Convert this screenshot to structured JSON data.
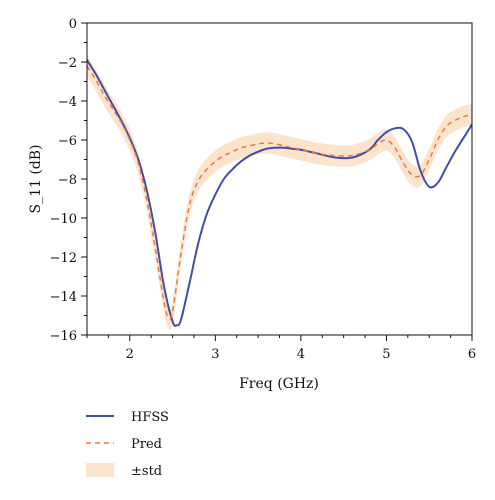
{
  "chart_data": {
    "type": "line",
    "title": "",
    "xlabel": "Freq (GHz)",
    "ylabel": "S_11 (dB)",
    "xlim": [
      1.5,
      6
    ],
    "ylim": [
      -16,
      0
    ],
    "xticks": [
      2,
      3,
      4,
      5,
      6
    ],
    "yticks": [
      0,
      -2,
      -4,
      -6,
      -8,
      -10,
      -12,
      -14,
      -16
    ],
    "xtick_labels": [
      "2",
      "3",
      "4",
      "5",
      "6"
    ],
    "ytick_labels": [
      "0",
      "−2",
      "−4",
      "−6",
      "−8",
      "−10",
      "−12",
      "−14",
      "−16"
    ],
    "grid": false,
    "legend_position": "bottom-left, below plot",
    "legend": [
      "HFSS",
      "Pred",
      "±std"
    ],
    "series": [
      {
        "name": "HFSS",
        "style": "solid",
        "color": "#3f4fa8",
        "x": [
          1.5,
          1.6,
          1.7,
          1.8,
          1.9,
          2.0,
          2.1,
          2.2,
          2.3,
          2.4,
          2.5,
          2.55,
          2.6,
          2.7,
          2.8,
          2.9,
          3.0,
          3.1,
          3.2,
          3.3,
          3.4,
          3.5,
          3.6,
          3.7,
          3.8,
          3.9,
          4.0,
          4.2,
          4.4,
          4.6,
          4.8,
          4.9,
          5.0,
          5.1,
          5.2,
          5.3,
          5.4,
          5.5,
          5.6,
          5.7,
          5.8,
          5.9,
          6.0
        ],
        "y": [
          -1.9,
          -2.6,
          -3.4,
          -4.2,
          -5.0,
          -5.9,
          -7.0,
          -8.6,
          -10.8,
          -13.5,
          -15.3,
          -15.5,
          -15.2,
          -13.3,
          -11.3,
          -9.8,
          -8.8,
          -8.0,
          -7.5,
          -7.1,
          -6.8,
          -6.6,
          -6.45,
          -6.4,
          -6.4,
          -6.45,
          -6.5,
          -6.7,
          -6.9,
          -6.9,
          -6.5,
          -6.0,
          -5.6,
          -5.4,
          -5.45,
          -6.1,
          -7.6,
          -8.4,
          -8.2,
          -7.4,
          -6.6,
          -5.9,
          -5.2
        ]
      },
      {
        "name": "Pred",
        "style": "dashed",
        "color": "#f0703c",
        "x": [
          1.5,
          1.6,
          1.7,
          1.8,
          1.9,
          2.0,
          2.1,
          2.2,
          2.3,
          2.4,
          2.45,
          2.5,
          2.6,
          2.7,
          2.8,
          2.9,
          3.0,
          3.1,
          3.2,
          3.3,
          3.4,
          3.5,
          3.6,
          3.7,
          3.8,
          3.9,
          4.0,
          4.2,
          4.4,
          4.6,
          4.8,
          4.9,
          5.0,
          5.1,
          5.2,
          5.3,
          5.4,
          5.5,
          5.6,
          5.7,
          5.8,
          5.9,
          6.0
        ],
        "y": [
          -2.2,
          -2.9,
          -3.7,
          -4.4,
          -5.1,
          -6.0,
          -7.2,
          -9.1,
          -11.6,
          -14.3,
          -15.1,
          -14.8,
          -11.8,
          -9.3,
          -8.1,
          -7.5,
          -7.1,
          -6.8,
          -6.6,
          -6.4,
          -6.3,
          -6.2,
          -6.15,
          -6.2,
          -6.3,
          -6.4,
          -6.5,
          -6.7,
          -6.8,
          -6.8,
          -6.5,
          -6.2,
          -6.0,
          -6.4,
          -7.2,
          -7.8,
          -7.8,
          -7.0,
          -6.0,
          -5.3,
          -5.0,
          -4.8,
          -4.7
        ]
      },
      {
        "name": "±std",
        "style": "band",
        "color": "#fbe3cc",
        "std": 0.55
      }
    ]
  }
}
